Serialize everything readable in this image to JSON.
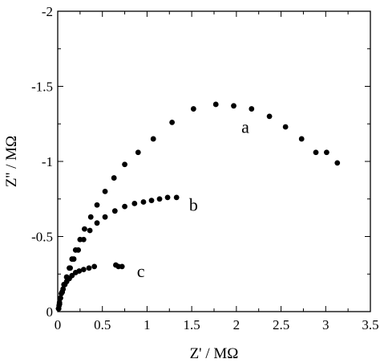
{
  "chart_data": {
    "type": "scatter",
    "title": "",
    "xlabel": "Z' / MΩ",
    "ylabel": "Z'' / MΩ",
    "xlim": [
      0,
      3.5
    ],
    "ylim": [
      0,
      -2
    ],
    "x_ticks": [
      0,
      0.5,
      1,
      1.5,
      2,
      2.5,
      3,
      3.5
    ],
    "x_tick_labels": [
      "0",
      "0.5",
      "1",
      "1.5",
      "2",
      "2.5",
      "3",
      "3.5"
    ],
    "y_ticks": [
      0,
      -0.5,
      -1,
      -1.5,
      -2
    ],
    "y_tick_labels": [
      "0",
      "-0.5",
      "-1",
      "-1.5",
      "-2"
    ],
    "grid": false,
    "marker_color": "#000000",
    "series": [
      {
        "name": "a",
        "label_at": [
          2.1,
          -1.19
        ],
        "x": [
          0.01,
          0.02,
          0.03,
          0.05,
          0.07,
          0.1,
          0.13,
          0.16,
          0.2,
          0.25,
          0.3,
          0.37,
          0.44,
          0.53,
          0.63,
          0.75,
          0.9,
          1.07,
          1.28,
          1.52,
          1.77,
          1.97,
          2.17,
          2.37,
          2.55,
          2.73,
          2.89,
          3.01,
          3.13
        ],
        "y": [
          -0.02,
          -0.05,
          -0.09,
          -0.13,
          -0.18,
          -0.23,
          -0.29,
          -0.35,
          -0.41,
          -0.48,
          -0.55,
          -0.63,
          -0.71,
          -0.8,
          -0.89,
          -0.98,
          -1.06,
          -1.15,
          -1.26,
          -1.35,
          -1.38,
          -1.37,
          -1.35,
          -1.3,
          -1.23,
          -1.15,
          -1.06,
          -1.06,
          -0.99
        ]
      },
      {
        "name": "b",
        "label_at": [
          1.52,
          -0.67
        ],
        "x": [
          0.01,
          0.02,
          0.03,
          0.05,
          0.07,
          0.1,
          0.14,
          0.18,
          0.23,
          0.29,
          0.36,
          0.44,
          0.53,
          0.64,
          0.75,
          0.86,
          0.96,
          1.05,
          1.14,
          1.23,
          1.33
        ],
        "y": [
          -0.02,
          -0.05,
          -0.09,
          -0.13,
          -0.18,
          -0.23,
          -0.29,
          -0.35,
          -0.41,
          -0.48,
          -0.54,
          -0.59,
          -0.63,
          -0.67,
          -0.7,
          -0.72,
          -0.73,
          -0.74,
          -0.75,
          -0.76,
          -0.76
        ]
      },
      {
        "name": "c",
        "label_at": [
          0.93,
          -0.23
        ],
        "x": [
          0.01,
          0.015,
          0.02,
          0.03,
          0.04,
          0.06,
          0.08,
          0.1,
          0.13,
          0.16,
          0.2,
          0.24,
          0.29,
          0.35,
          0.41,
          0.65,
          0.68,
          0.72
        ],
        "y": [
          -0.02,
          -0.04,
          -0.06,
          -0.09,
          -0.12,
          -0.15,
          -0.18,
          -0.2,
          -0.22,
          -0.24,
          -0.26,
          -0.27,
          -0.28,
          -0.29,
          -0.3,
          -0.31,
          -0.3,
          -0.3
        ]
      }
    ]
  }
}
